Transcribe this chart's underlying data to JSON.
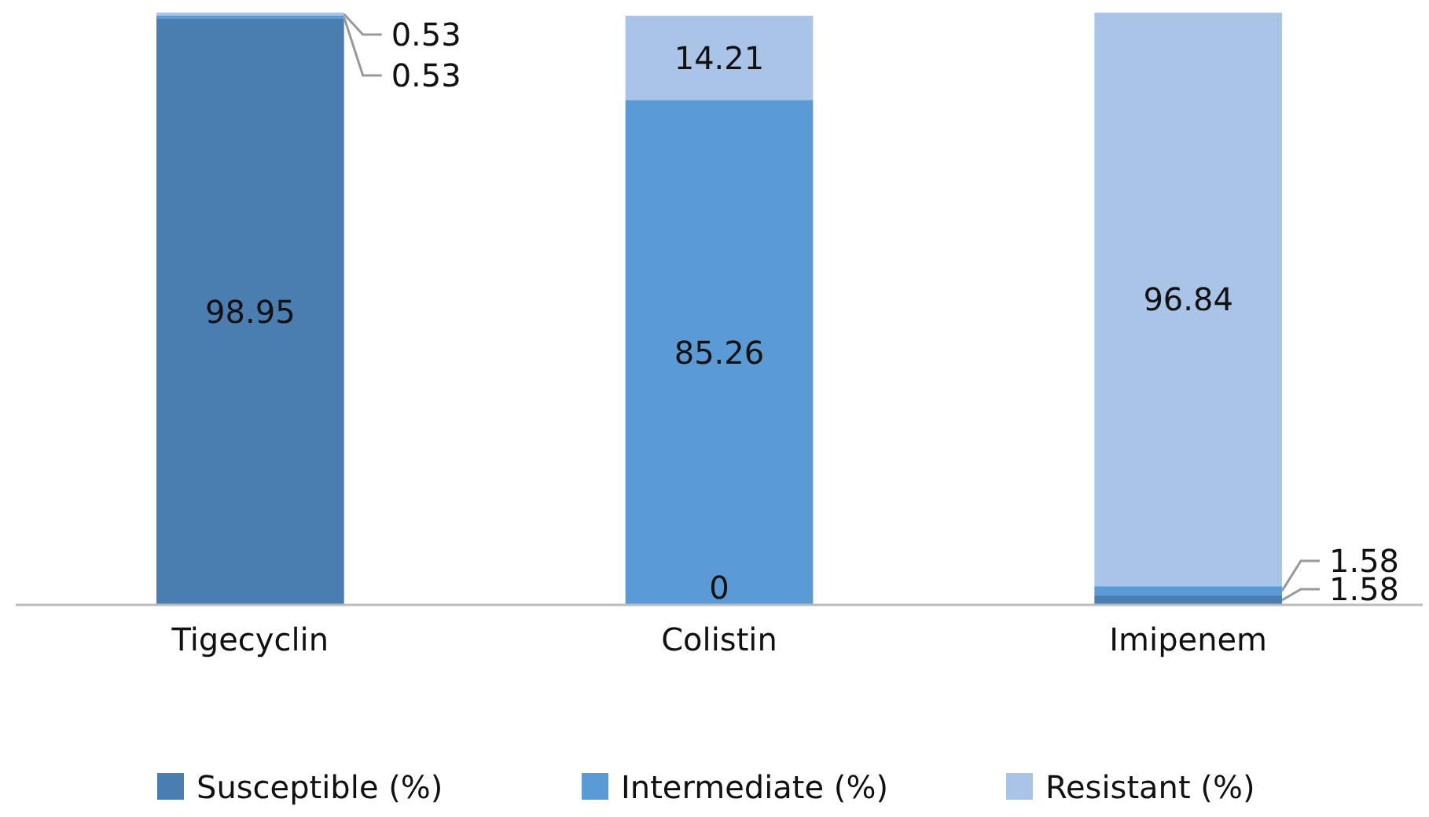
{
  "chart_data": {
    "type": "bar",
    "stacked": true,
    "legend": "bottom",
    "grid": false,
    "categories": [
      "Tigecyclin",
      "Colistin",
      "Imipenem"
    ],
    "series": [
      {
        "name": "Susceptible (%)",
        "color": "#4a7eb0",
        "values": [
          98.95,
          0,
          1.58
        ],
        "value_labels": [
          "98.95",
          null,
          "1.58"
        ]
      },
      {
        "name": "Intermediate (%)",
        "color": "#5b9bd5",
        "values": [
          0.53,
          85.26,
          1.58
        ],
        "value_labels": [
          "0.53",
          "85.26",
          "1.58"
        ]
      },
      {
        "name": "Resistant (%)",
        "color": "#a9c4e6",
        "values": [
          0.53,
          14.21,
          96.84
        ],
        "value_labels": [
          "0.53",
          "14.21",
          "96.84"
        ]
      }
    ],
    "annotations": [
      {
        "text": "0",
        "x": "Colistin",
        "y": 0
      }
    ]
  }
}
